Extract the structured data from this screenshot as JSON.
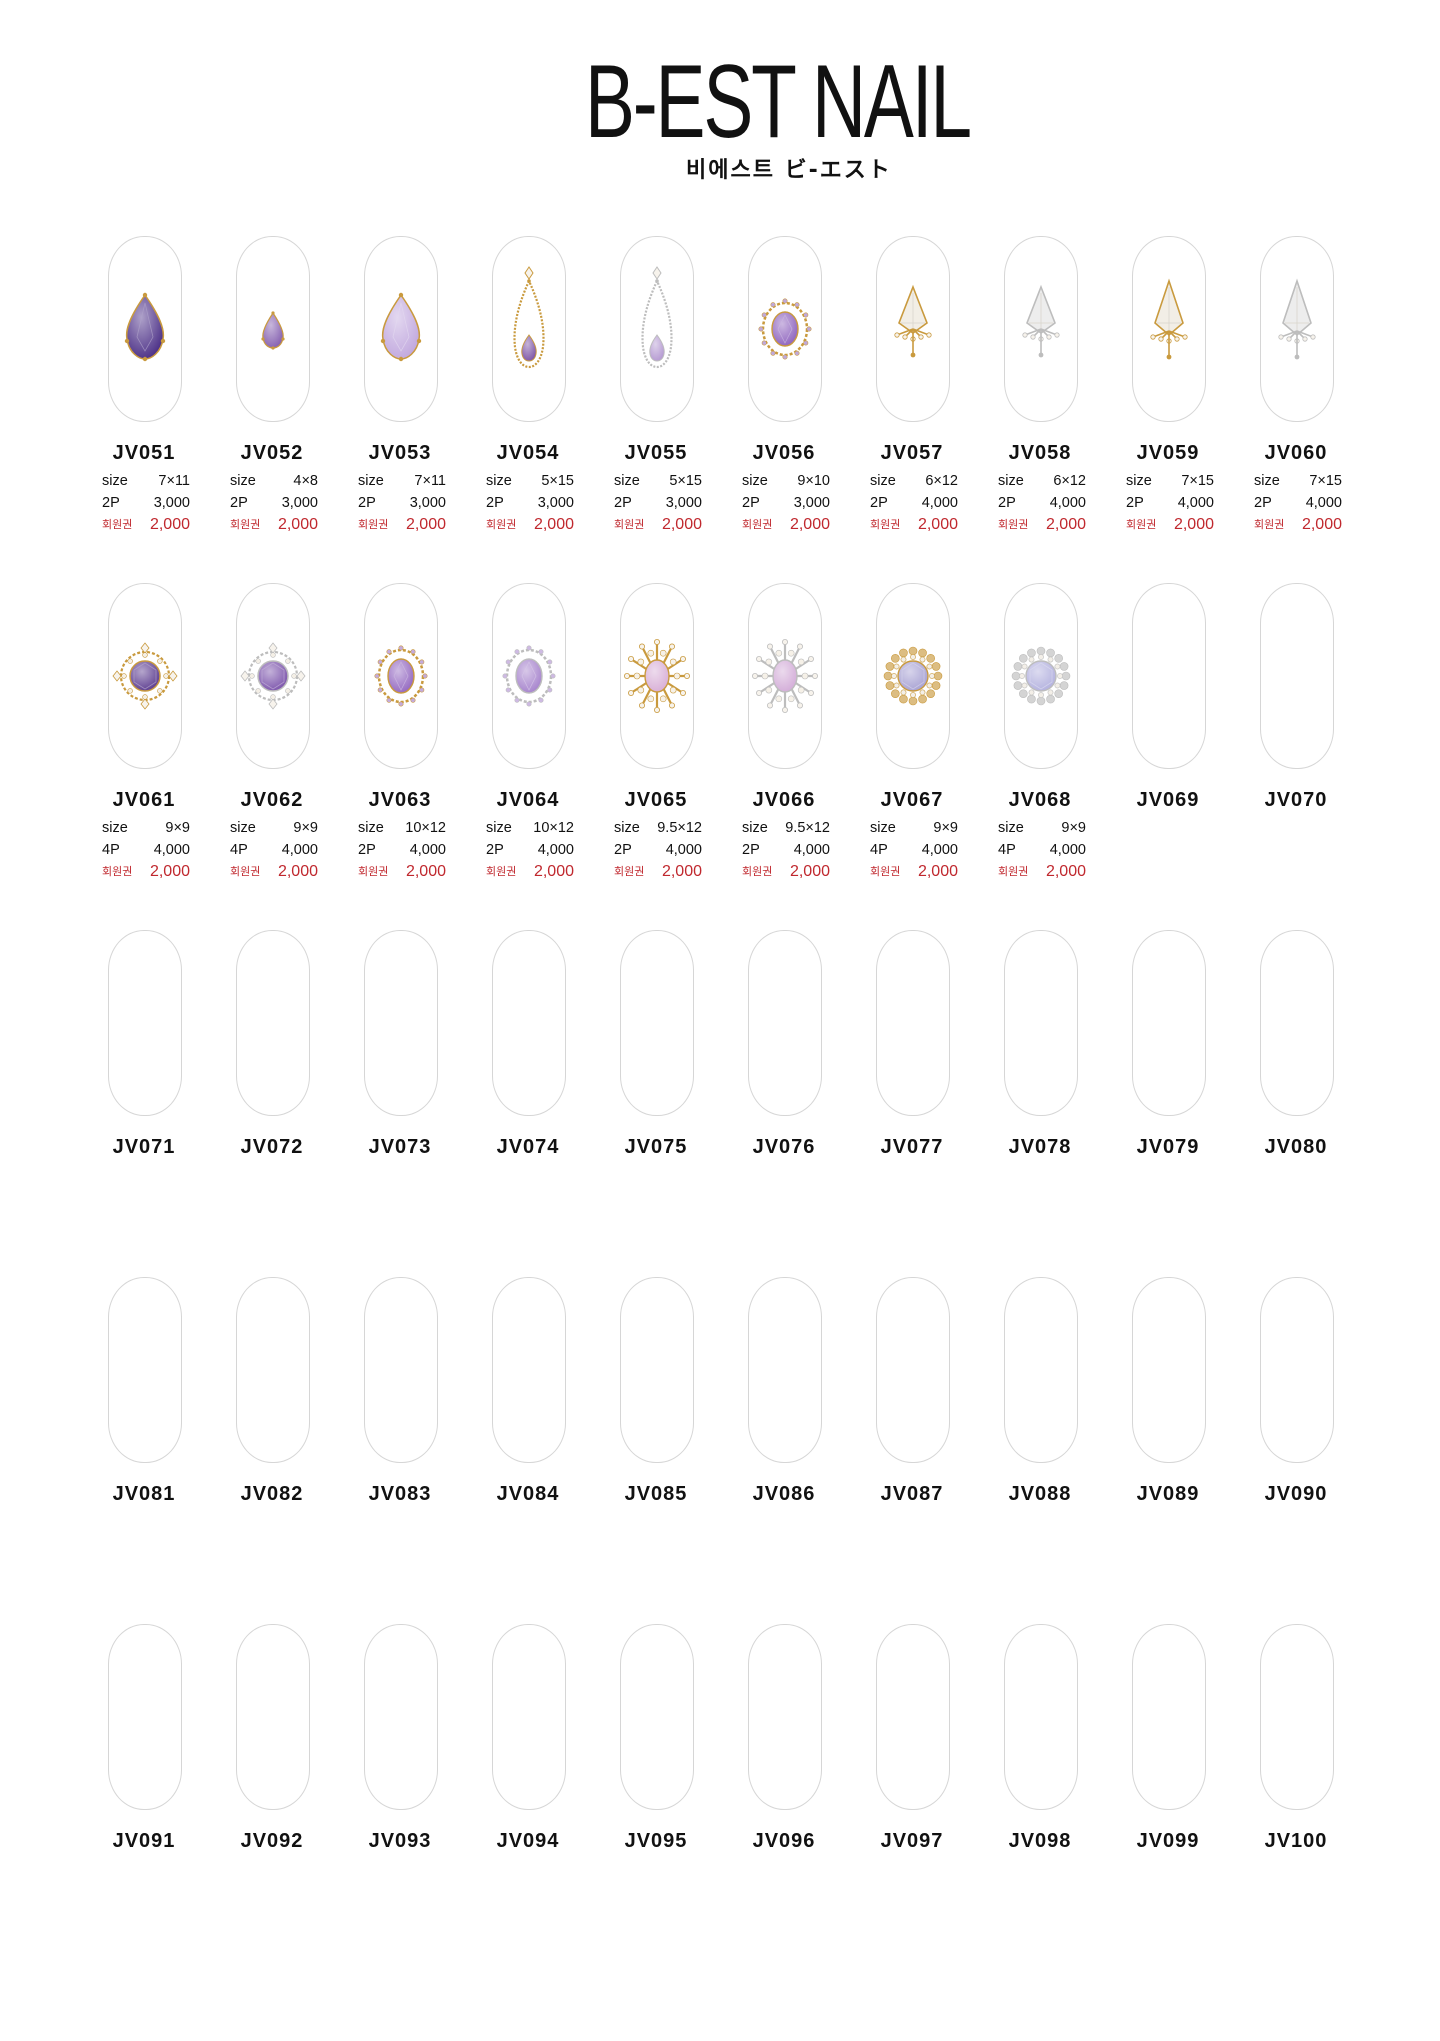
{
  "brand": {
    "name": "B-EST NAIL",
    "subtitle": "비에스트 ビ-エスト"
  },
  "labels": {
    "size": "size",
    "member": "회원권"
  },
  "colors": {
    "price_member": "#c0282e",
    "nail_outline": "#d6d6d6"
  },
  "rows": [
    [
      {
        "code": "JV051",
        "size": "7×11",
        "pack": "2P",
        "price": "3,000",
        "member_price": "2,000",
        "gem": {
          "shape": "drop",
          "stone": "#4b2f86",
          "metal": "gold"
        }
      },
      {
        "code": "JV052",
        "size": "4×8",
        "pack": "2P",
        "price": "3,000",
        "member_price": "2,000",
        "gem": {
          "shape": "small-drop",
          "stone": "#8560b0",
          "metal": "gold"
        }
      },
      {
        "code": "JV053",
        "size": "7×11",
        "pack": "2P",
        "price": "3,000",
        "member_price": "2,000",
        "gem": {
          "shape": "drop",
          "stone": "#c1a8de",
          "metal": "gold"
        }
      },
      {
        "code": "JV054",
        "size": "5×15",
        "pack": "2P",
        "price": "3,000",
        "member_price": "2,000",
        "gem": {
          "shape": "frame-drop",
          "stone": "#7e56a6",
          "metal": "gold"
        }
      },
      {
        "code": "JV055",
        "size": "5×15",
        "pack": "2P",
        "price": "3,000",
        "member_price": "2,000",
        "gem": {
          "shape": "frame-drop",
          "stone": "#b59ad2",
          "metal": "silver"
        }
      },
      {
        "code": "JV056",
        "size": "9×10",
        "pack": "2P",
        "price": "3,000",
        "member_price": "2,000",
        "gem": {
          "shape": "oval-ornate",
          "stone": "#8d62bd",
          "metal": "gold"
        }
      },
      {
        "code": "JV057",
        "size": "6×12",
        "pack": "2P",
        "price": "4,000",
        "member_price": "2,000",
        "gem": {
          "shape": "kite",
          "stone": "#f2eee6",
          "metal": "gold"
        }
      },
      {
        "code": "JV058",
        "size": "6×12",
        "pack": "2P",
        "price": "4,000",
        "member_price": "2,000",
        "gem": {
          "shape": "kite",
          "stone": "#ededed",
          "metal": "silver"
        }
      },
      {
        "code": "JV059",
        "size": "7×15",
        "pack": "2P",
        "price": "4,000",
        "member_price": "2,000",
        "gem": {
          "shape": "kite-long",
          "stone": "#f2eee6",
          "metal": "gold"
        }
      },
      {
        "code": "JV060",
        "size": "7×15",
        "pack": "2P",
        "price": "4,000",
        "member_price": "2,000",
        "gem": {
          "shape": "kite-long",
          "stone": "#ededed",
          "metal": "silver"
        }
      }
    ],
    [
      {
        "code": "JV061",
        "size": "9×9",
        "pack": "4P",
        "price": "4,000",
        "member_price": "2,000",
        "gem": {
          "shape": "round-ornate",
          "stone": "#5a3a8e",
          "metal": "gold"
        }
      },
      {
        "code": "JV062",
        "size": "9×9",
        "pack": "4P",
        "price": "4,000",
        "member_price": "2,000",
        "gem": {
          "shape": "round-ornate",
          "stone": "#7a52aa",
          "metal": "silver"
        }
      },
      {
        "code": "JV063",
        "size": "10×12",
        "pack": "2P",
        "price": "4,000",
        "member_price": "2,000",
        "gem": {
          "shape": "oval-ornate",
          "stone": "#9367c0",
          "metal": "gold"
        }
      },
      {
        "code": "JV064",
        "size": "10×12",
        "pack": "2P",
        "price": "4,000",
        "member_price": "2,000",
        "gem": {
          "shape": "oval-ornate",
          "stone": "#a582cc",
          "metal": "silver"
        }
      },
      {
        "code": "JV065",
        "size": "9.5×12",
        "pack": "2P",
        "price": "4,000",
        "member_price": "2,000",
        "gem": {
          "shape": "oval-star",
          "stone": "#d8aed6",
          "metal": "gold"
        }
      },
      {
        "code": "JV066",
        "size": "9.5×12",
        "pack": "2P",
        "price": "4,000",
        "member_price": "2,000",
        "gem": {
          "shape": "oval-star",
          "stone": "#d3acd8",
          "metal": "silver"
        }
      },
      {
        "code": "JV067",
        "size": "9×9",
        "pack": "4P",
        "price": "4,000",
        "member_price": "2,000",
        "gem": {
          "shape": "round-lace",
          "stone": "#a6a0d2",
          "metal": "gold"
        }
      },
      {
        "code": "JV068",
        "size": "9×9",
        "pack": "4P",
        "price": "4,000",
        "member_price": "2,000",
        "gem": {
          "shape": "round-lace",
          "stone": "#b2b0de",
          "metal": "silver"
        }
      },
      {
        "code": "JV069"
      },
      {
        "code": "JV070"
      }
    ],
    [
      {
        "code": "JV071"
      },
      {
        "code": "JV072"
      },
      {
        "code": "JV073"
      },
      {
        "code": "JV074"
      },
      {
        "code": "JV075"
      },
      {
        "code": "JV076"
      },
      {
        "code": "JV077"
      },
      {
        "code": "JV078"
      },
      {
        "code": "JV079"
      },
      {
        "code": "JV080"
      }
    ],
    [
      {
        "code": "JV081"
      },
      {
        "code": "JV082"
      },
      {
        "code": "JV083"
      },
      {
        "code": "JV084"
      },
      {
        "code": "JV085"
      },
      {
        "code": "JV086"
      },
      {
        "code": "JV087"
      },
      {
        "code": "JV088"
      },
      {
        "code": "JV089"
      },
      {
        "code": "JV090"
      }
    ],
    [
      {
        "code": "JV091"
      },
      {
        "code": "JV092"
      },
      {
        "code": "JV093"
      },
      {
        "code": "JV094"
      },
      {
        "code": "JV095"
      },
      {
        "code": "JV096"
      },
      {
        "code": "JV097"
      },
      {
        "code": "JV098"
      },
      {
        "code": "JV099"
      },
      {
        "code": "JV100"
      }
    ]
  ]
}
